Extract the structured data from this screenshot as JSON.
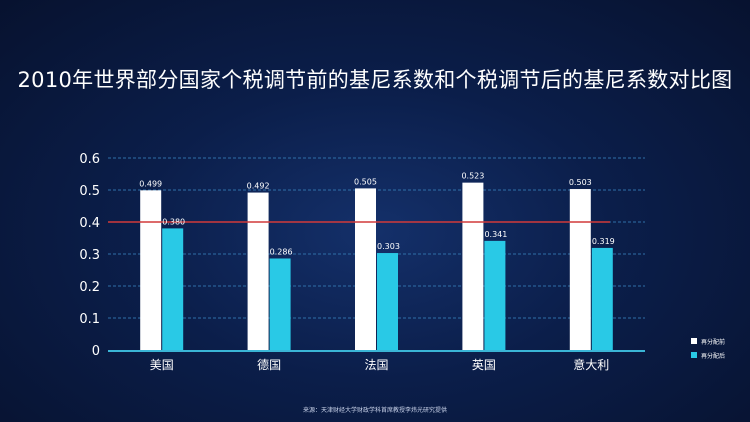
{
  "chart_data": {
    "type": "bar",
    "title": "2010年世界部分国家个税调节前的基尼系数和个税调节后的基尼系数对比图",
    "categories": [
      "美国",
      "德国",
      "法国",
      "英国",
      "意大利"
    ],
    "series": [
      {
        "name": "再分配前",
        "values": [
          0.499,
          0.492,
          0.505,
          0.523,
          0.503
        ],
        "labels": [
          "0.499",
          "0.492",
          "0.505",
          "0.523",
          "0.503"
        ],
        "color": "#ffffff"
      },
      {
        "name": "再分配后",
        "values": [
          0.38,
          0.286,
          0.303,
          0.341,
          0.319
        ],
        "labels": [
          "0.380",
          "0.286",
          "0.303",
          "0.341",
          "0.319"
        ],
        "color": "#29c9e6"
      }
    ],
    "ylim": [
      0,
      0.6
    ],
    "yticks": [
      "0",
      "0.1",
      "0.2",
      "0.3",
      "0.4",
      "0.5",
      "0.6"
    ],
    "reference_line": {
      "value": 0.4,
      "color": "#d23a3a"
    },
    "grid": "dashed horizontal",
    "legend_position": "right",
    "source": "来源：天津财经大学财政学科首席教授李炜光研究提供"
  },
  "colors": {
    "axis": "#3ab5d6",
    "grid": "#2f6fa8"
  }
}
